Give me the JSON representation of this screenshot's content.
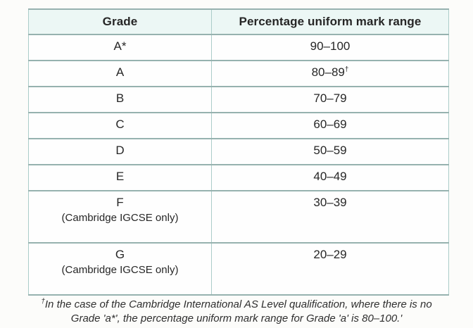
{
  "table": {
    "columns": [
      "Grade",
      "Percentage uniform mark range"
    ],
    "rows": [
      {
        "grade": "A*",
        "note": "",
        "range": "90–100",
        "range_sup": ""
      },
      {
        "grade": "A",
        "note": "",
        "range": "80–89",
        "range_sup": "†"
      },
      {
        "grade": "B",
        "note": "",
        "range": "70–79",
        "range_sup": ""
      },
      {
        "grade": "C",
        "note": "",
        "range": "60–69",
        "range_sup": ""
      },
      {
        "grade": "D",
        "note": "",
        "range": "50–59",
        "range_sup": ""
      },
      {
        "grade": "E",
        "note": "",
        "range": "40–49",
        "range_sup": ""
      },
      {
        "grade": "F",
        "note": "(Cambridge IGCSE only)",
        "range": "30–39",
        "range_sup": ""
      },
      {
        "grade": "G",
        "note": "(Cambridge IGCSE only)",
        "range": "20–29",
        "range_sup": ""
      }
    ]
  },
  "footnote": {
    "marker": "†",
    "text": "In the case of the Cambridge International AS Level qualification, where there is no Grade 'a*', the percentage uniform mark range for Grade 'a' is 80–100.'"
  },
  "colors": {
    "border_h": "#96b2af",
    "border_v": "#abccc9",
    "header_bg": "#ecf7f5",
    "text": "#262626",
    "page_bg": "#fcfcfa"
  }
}
